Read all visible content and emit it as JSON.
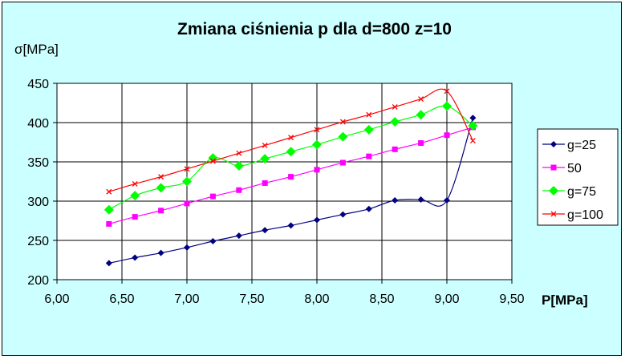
{
  "chart_data": {
    "type": "line",
    "title": "Zmiana ciśnienia p dla d=800 z=10",
    "xlabel": "P[MPa]",
    "ylabel": "σ[MPa]",
    "xlim": [
      6.0,
      9.5
    ],
    "ylim": [
      200,
      450
    ],
    "x_ticks": [
      "6,00",
      "6,50",
      "7,00",
      "7,50",
      "8,00",
      "8,50",
      "9,00",
      "9,50"
    ],
    "y_ticks": [
      "200",
      "250",
      "300",
      "350",
      "400",
      "450"
    ],
    "grid": true,
    "legend_position": "right",
    "series": [
      {
        "name": "g=25",
        "color": "#000080",
        "marker": "diamond-small",
        "x": [
          6.4,
          6.6,
          6.8,
          7.0,
          7.2,
          7.4,
          7.6,
          7.8,
          8.0,
          8.2,
          8.4,
          8.6,
          8.8,
          9.0,
          9.2
        ],
        "y": [
          221,
          228,
          234,
          241,
          249,
          256,
          263,
          269,
          276,
          283,
          290,
          301,
          302,
          301,
          406
        ]
      },
      {
        "name": "50",
        "color": "#ff00ff",
        "marker": "square",
        "x": [
          6.4,
          6.6,
          6.8,
          7.0,
          7.2,
          7.4,
          7.6,
          7.8,
          8.0,
          8.2,
          8.4,
          8.6,
          8.8,
          9.0,
          9.2
        ],
        "y": [
          271,
          280,
          288,
          297,
          306,
          314,
          323,
          331,
          340,
          349,
          357,
          366,
          374,
          384,
          394
        ]
      },
      {
        "name": "g=75",
        "color": "#00ff00",
        "marker": "diamond",
        "x": [
          6.4,
          6.6,
          6.8,
          7.0,
          7.2,
          7.4,
          7.6,
          7.8,
          8.0,
          8.2,
          8.4,
          8.6,
          8.8,
          9.0,
          9.2
        ],
        "y": [
          289,
          307,
          317,
          325,
          355,
          345,
          354,
          363,
          372,
          382,
          391,
          401,
          410,
          421,
          396
        ]
      },
      {
        "name": "g=100",
        "color": "#ff0000",
        "marker": "x",
        "x": [
          6.4,
          6.6,
          6.8,
          7.0,
          7.2,
          7.4,
          7.6,
          7.8,
          8.0,
          8.2,
          8.4,
          8.6,
          8.8,
          9.0,
          9.2
        ],
        "y": [
          312,
          322,
          331,
          341,
          351,
          361,
          371,
          381,
          391,
          401,
          410,
          420,
          430,
          440,
          377
        ]
      }
    ]
  }
}
